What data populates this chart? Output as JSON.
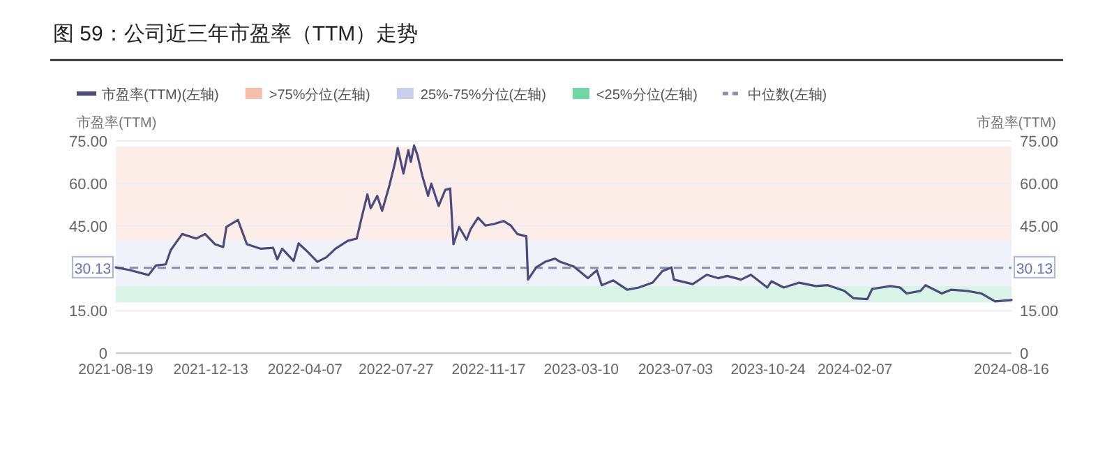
{
  "chart_data": {
    "type": "line",
    "title": "图 59：公司近三年市盈率（TTM）走势",
    "ylabel": "市盈率(TTM)",
    "y2label": "市盈率(TTM)",
    "xlim": [
      "2021-08-19",
      "2024-08-16"
    ],
    "xticks": [
      "2021-08-19",
      "2021-12-13",
      "2022-04-07",
      "2022-07-27",
      "2022-11-17",
      "2023-03-10",
      "2023-07-03",
      "2023-10-24",
      "2024-02-07",
      "2024-08-16"
    ],
    "ylim": [
      0,
      75
    ],
    "yticks": [
      0,
      {
        "value": 15,
        "label": "15.00"
      },
      {
        "value": 30.13,
        "label": "30.13"
      },
      {
        "value": 45,
        "label": "45.00"
      },
      {
        "value": 60,
        "label": "60.00"
      },
      {
        "value": 75,
        "label": "75.00"
      }
    ],
    "y2lim": [
      0,
      75
    ],
    "y2ticks": [
      0,
      {
        "value": 15,
        "label": "15.00"
      },
      {
        "value": 30.13,
        "label": "30.13"
      },
      {
        "value": 45,
        "label": "45.00"
      },
      {
        "value": 60,
        "label": "60.00"
      },
      {
        "value": 75,
        "label": "75.00"
      }
    ],
    "grid": "y",
    "legend": "top left",
    "marker": "none",
    "line_style": "solid",
    "series": [
      {
        "name": "市盈率(TTM)(左轴)",
        "color": "#4b4b7c",
        "x": [
          "2021-08-19",
          "2021-09-06",
          "2021-09-28",
          "2021-10-07",
          "2021-10-19",
          "2021-10-25",
          "2021-11-08",
          "2021-11-25",
          "2021-12-06",
          "2021-12-18",
          "2021-12-28",
          "2022-01-01",
          "2022-01-15",
          "2022-01-26",
          "2022-02-12",
          "2022-02-27",
          "2022-03-04",
          "2022-03-10",
          "2022-03-24",
          "2022-03-30",
          "2022-04-08",
          "2022-04-22",
          "2022-05-03",
          "2022-05-14",
          "2022-05-29",
          "2022-06-09",
          "2022-06-15",
          "2022-06-22",
          "2022-06-26",
          "2022-07-04",
          "2022-07-10",
          "2022-07-19",
          "2022-07-26",
          "2022-07-29",
          "2022-08-05",
          "2022-08-11",
          "2022-08-14",
          "2022-08-18",
          "2022-08-22",
          "2022-08-28",
          "2022-09-04",
          "2022-09-08",
          "2022-09-17",
          "2022-09-25",
          "2022-10-01",
          "2022-10-05",
          "2022-10-12",
          "2022-10-21",
          "2022-10-26",
          "2022-11-04",
          "2022-11-13",
          "2022-11-24",
          "2022-12-05",
          "2022-12-14",
          "2022-12-22",
          "2023-01-02",
          "2023-01-04",
          "2023-01-14",
          "2023-01-25",
          "2023-02-06",
          "2023-02-12",
          "2023-03-01",
          "2023-03-18",
          "2023-03-29",
          "2023-04-04",
          "2023-04-18",
          "2023-05-05",
          "2023-05-19",
          "2023-06-05",
          "2023-06-17",
          "2023-06-28",
          "2023-07-01",
          "2023-07-24",
          "2023-08-10",
          "2023-08-24",
          "2023-09-04",
          "2023-09-21",
          "2023-10-03",
          "2023-10-23",
          "2023-10-28",
          "2023-11-12",
          "2023-12-01",
          "2023-12-21",
          "2024-01-05",
          "2024-01-25",
          "2024-02-05",
          "2024-02-22",
          "2024-02-28",
          "2024-03-21",
          "2024-04-02",
          "2024-04-10",
          "2024-04-27",
          "2024-05-03",
          "2024-05-23",
          "2024-06-03",
          "2024-06-23",
          "2024-07-10",
          "2024-07-27",
          "2024-08-16"
        ],
        "values": [
          30.3,
          29.3,
          27.6,
          31.0,
          31.4,
          36.4,
          42.1,
          40.5,
          42.1,
          38.5,
          37.5,
          44.6,
          47.1,
          38.5,
          36.9,
          37.2,
          33.1,
          36.9,
          32.6,
          38.8,
          36.4,
          32.3,
          33.9,
          36.9,
          39.7,
          40.5,
          47.9,
          56.1,
          51.2,
          55.6,
          50.3,
          59.4,
          67.6,
          72.5,
          63.5,
          71.7,
          67.6,
          73.4,
          70.1,
          62.7,
          55.6,
          59.9,
          52.0,
          57.7,
          58.2,
          38.5,
          44.6,
          40.1,
          43.8,
          47.9,
          45.1,
          45.7,
          46.7,
          45.1,
          42.1,
          41.3,
          26.0,
          30.3,
          32.3,
          33.4,
          32.3,
          30.6,
          26.5,
          29.3,
          24.0,
          25.7,
          22.4,
          23.2,
          24.9,
          29.0,
          30.3,
          26.0,
          24.4,
          27.7,
          26.5,
          27.3,
          26.0,
          27.7,
          23.2,
          25.4,
          23.2,
          24.9,
          23.7,
          24.0,
          22.0,
          19.4,
          19.1,
          22.7,
          23.7,
          23.2,
          21.1,
          22.0,
          24.0,
          21.1,
          22.4,
          22.0,
          21.1,
          18.3,
          18.8
        ]
      }
    ],
    "bands": [
      {
        "axis": "y",
        "from": 40.1,
        "to": 73.0,
        "label": ">75%分位(左轴)",
        "color": "#f5bfae"
      },
      {
        "axis": "y",
        "from": 23.7,
        "to": 40.1,
        "label": "25%-75%分位(左轴)",
        "color": "#c8cfea"
      },
      {
        "axis": "y",
        "from": 17.9,
        "to": 23.7,
        "label": "<25%分位(左轴)",
        "color": "#72d6a4"
      }
    ],
    "ref_lines": [
      {
        "axis": "y",
        "value": 30.13,
        "label": "中位数(左轴)",
        "color": "#8a8fb0",
        "line_style": "dashed"
      }
    ]
  }
}
